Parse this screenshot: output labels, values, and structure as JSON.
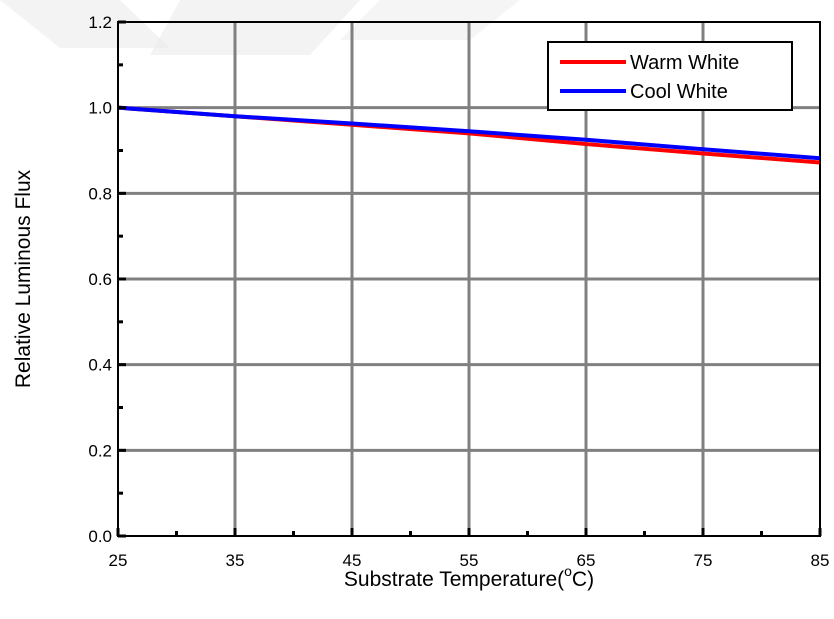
{
  "chart_data": {
    "type": "line",
    "title": "",
    "xlabel_main": "Substrate Temperature(",
    "xlabel_degree": "o",
    "xlabel_unit": "C)",
    "ylabel": "Relative Luminous Flux",
    "xlim": [
      25,
      85
    ],
    "ylim": [
      0.0,
      1.2
    ],
    "x_ticks": [
      "25",
      "35",
      "45",
      "55",
      "65",
      "75",
      "85"
    ],
    "y_ticks": [
      "0.0",
      "0.2",
      "0.4",
      "0.6",
      "0.8",
      "1.0",
      "1.2"
    ],
    "grid": true,
    "legend_position": "top-right",
    "series": [
      {
        "name": "Warm White",
        "color": "#ff0000",
        "x": [
          25,
          35,
          45,
          55,
          65,
          75,
          85
        ],
        "y": [
          1.0,
          0.98,
          0.96,
          0.94,
          0.915,
          0.893,
          0.872
        ]
      },
      {
        "name": "Cool White",
        "color": "#0000ff",
        "x": [
          25,
          35,
          45,
          55,
          65,
          75,
          85
        ],
        "y": [
          1.0,
          0.98,
          0.963,
          0.945,
          0.925,
          0.903,
          0.882
        ]
      }
    ]
  }
}
